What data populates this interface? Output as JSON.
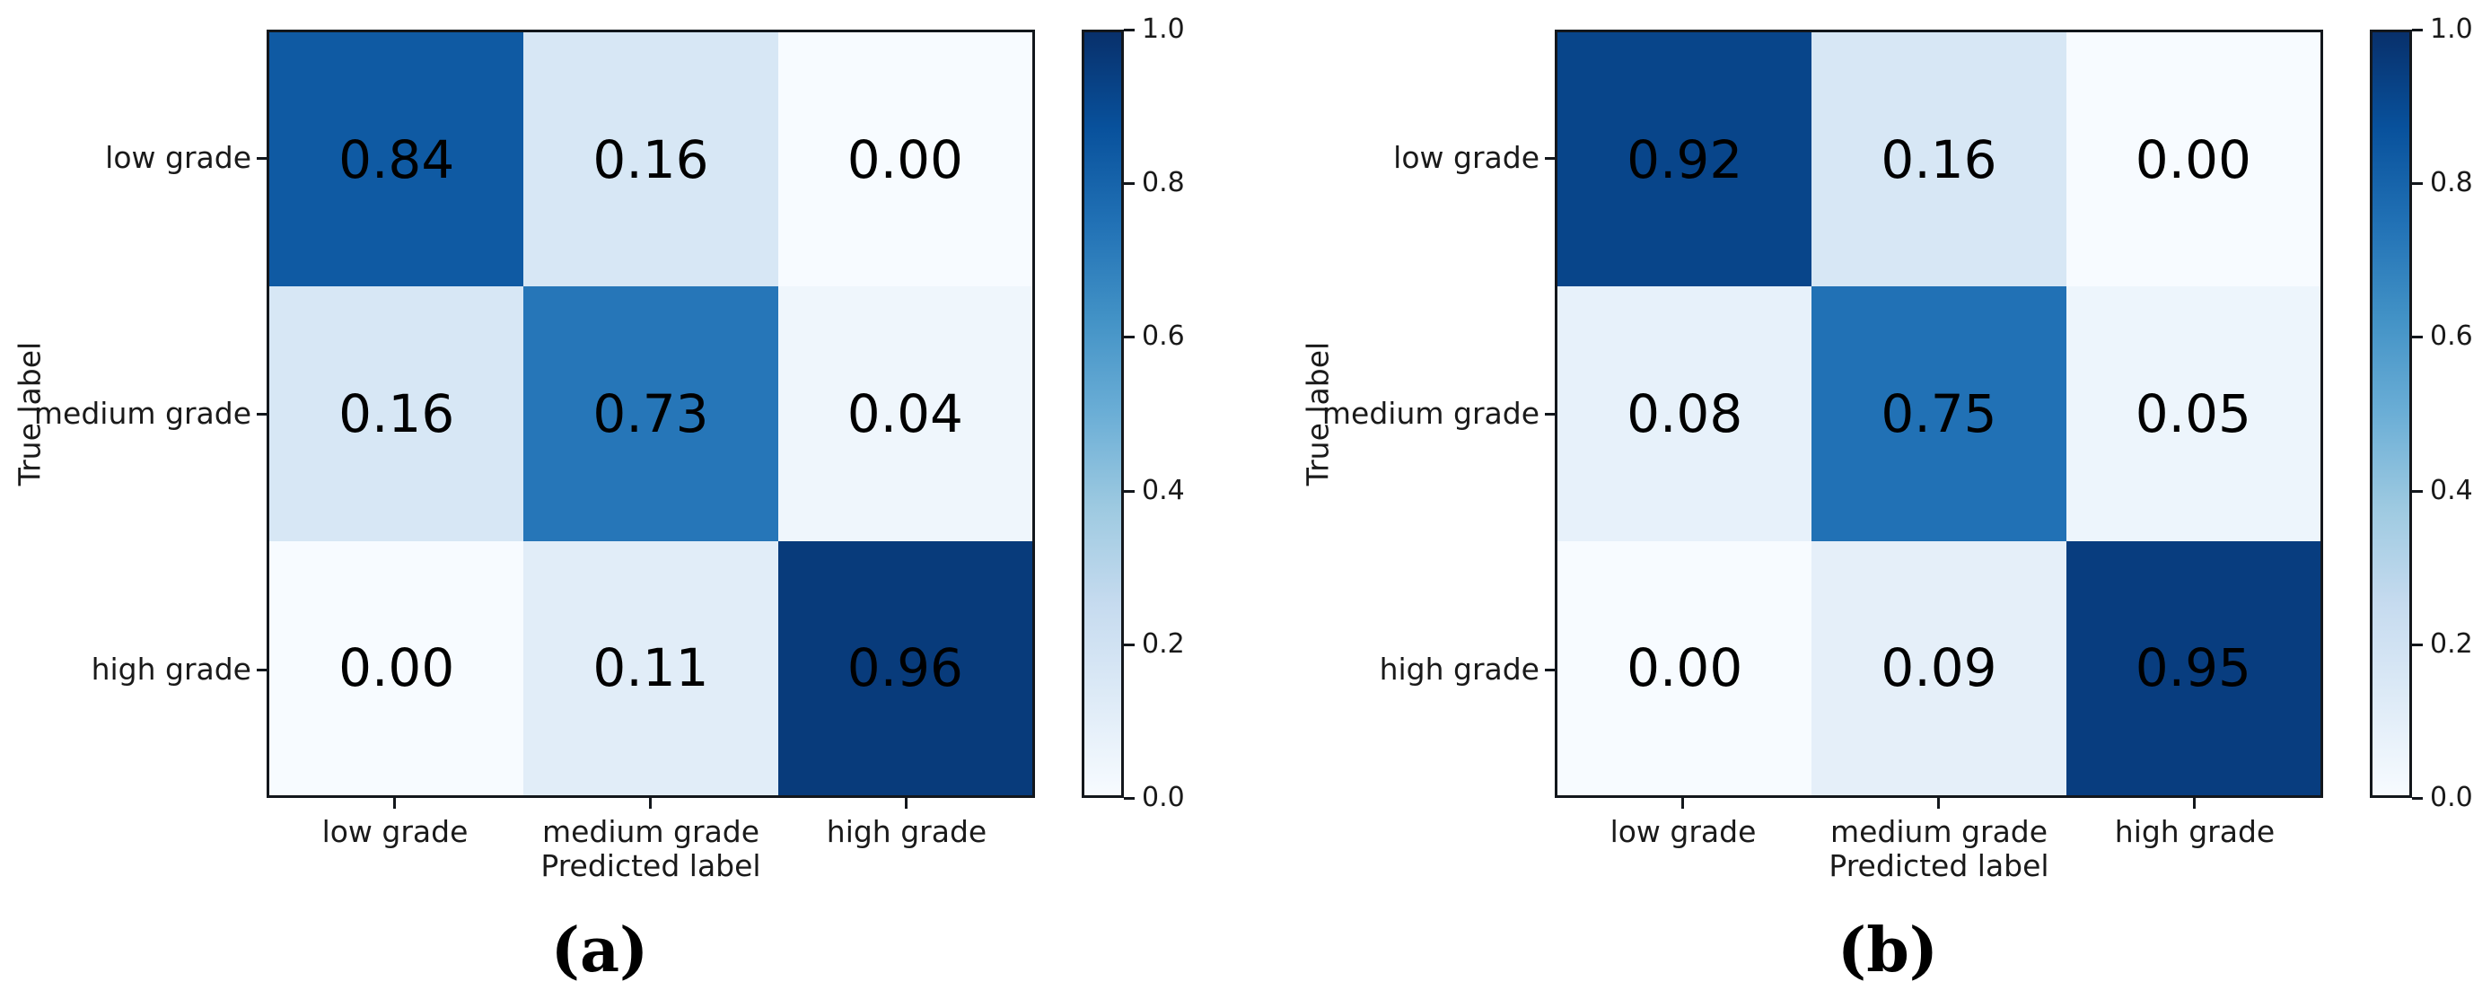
{
  "page": {
    "background": "#ffffff",
    "text_color": "#1a1a1a"
  },
  "colormap": {
    "name": "Blues",
    "stops": [
      "#f7fbff",
      "#deebf7",
      "#c6dbef",
      "#9ecae1",
      "#6baed6",
      "#4292c6",
      "#2171b5",
      "#08519c",
      "#08306b"
    ]
  },
  "chart_data": [
    {
      "type": "heatmap",
      "panel_caption": "(a)",
      "title": "",
      "xlabel": "Predicted label",
      "ylabel": "True label",
      "x_categories": [
        "low grade",
        "medium grade",
        "high grade"
      ],
      "y_categories": [
        "low grade",
        "medium grade",
        "high grade"
      ],
      "values": [
        [
          0.84,
          0.16,
          0.0
        ],
        [
          0.16,
          0.73,
          0.04
        ],
        [
          0.0,
          0.11,
          0.96
        ]
      ],
      "cell_labels": [
        [
          "0.84",
          "0.16",
          "0.00"
        ],
        [
          "0.16",
          "0.73",
          "0.04"
        ],
        [
          "0.00",
          "0.11",
          "0.96"
        ]
      ],
      "vmin": 0.0,
      "vmax": 1.0,
      "colormap": "Blues",
      "grid": false,
      "legend_position": "right-colorbar",
      "colorbar_ticks": [
        "1.0",
        "0.8",
        "0.6",
        "0.4",
        "0.2",
        "0.0"
      ]
    },
    {
      "type": "heatmap",
      "panel_caption": "(b)",
      "title": "",
      "xlabel": "Predicted label",
      "ylabel": "True label",
      "x_categories": [
        "low grade",
        "medium grade",
        "high grade"
      ],
      "y_categories": [
        "low grade",
        "medium grade",
        "high grade"
      ],
      "values": [
        [
          0.92,
          0.16,
          0.0
        ],
        [
          0.08,
          0.75,
          0.05
        ],
        [
          0.0,
          0.09,
          0.95
        ]
      ],
      "cell_labels": [
        [
          "0.92",
          "0.16",
          "0.00"
        ],
        [
          "0.08",
          "0.75",
          "0.05"
        ],
        [
          "0.00",
          "0.09",
          "0.95"
        ]
      ],
      "vmin": 0.0,
      "vmax": 1.0,
      "colormap": "Blues",
      "grid": false,
      "legend_position": "right-colorbar",
      "colorbar_ticks": [
        "1.0",
        "0.8",
        "0.6",
        "0.4",
        "0.2",
        "0.0"
      ]
    }
  ]
}
